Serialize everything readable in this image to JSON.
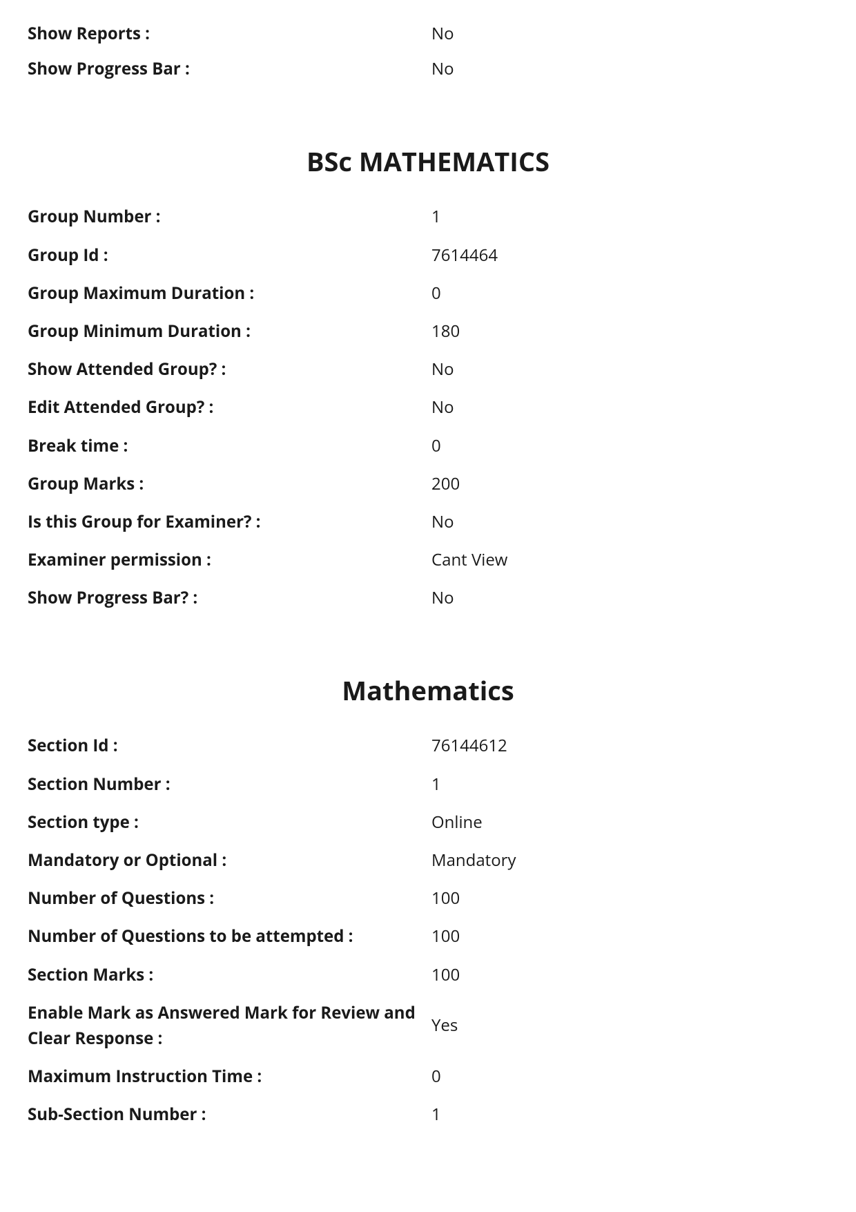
{
  "top_settings": [
    {
      "label": "Show Reports :",
      "value": "No"
    },
    {
      "label": "Show Progress Bar :",
      "value": "No"
    }
  ],
  "group": {
    "title": "BSc MATHEMATICS",
    "rows": [
      {
        "label": "Group Number :",
        "value": "1"
      },
      {
        "label": "Group Id :",
        "value": "7614464"
      },
      {
        "label": "Group Maximum Duration :",
        "value": "0"
      },
      {
        "label": "Group Minimum Duration :",
        "value": "180"
      },
      {
        "label": "Show Attended Group? :",
        "value": "No"
      },
      {
        "label": "Edit Attended Group? :",
        "value": "No"
      },
      {
        "label": "Break time :",
        "value": "0"
      },
      {
        "label": "Group Marks :",
        "value": "200"
      },
      {
        "label": "Is this Group for Examiner? :",
        "value": "No"
      },
      {
        "label": "Examiner permission :",
        "value": "Cant View"
      },
      {
        "label": "Show Progress Bar? :",
        "value": "No"
      }
    ]
  },
  "section": {
    "title": "Mathematics",
    "rows": [
      {
        "label": "Section Id :",
        "value": "76144612"
      },
      {
        "label": "Section Number :",
        "value": "1"
      },
      {
        "label": "Section type :",
        "value": "Online"
      },
      {
        "label": "Mandatory or Optional :",
        "value": "Mandatory"
      },
      {
        "label": "Number of Questions :",
        "value": "100"
      },
      {
        "label": "Number of Questions to be attempted :",
        "value": "100"
      },
      {
        "label": "Section Marks :",
        "value": "100"
      },
      {
        "label": "Enable Mark as Answered Mark for Review and Clear Response :",
        "value": "Yes"
      },
      {
        "label": "Maximum Instruction Time :",
        "value": "0"
      },
      {
        "label": "Sub-Section Number :",
        "value": "1"
      }
    ]
  }
}
